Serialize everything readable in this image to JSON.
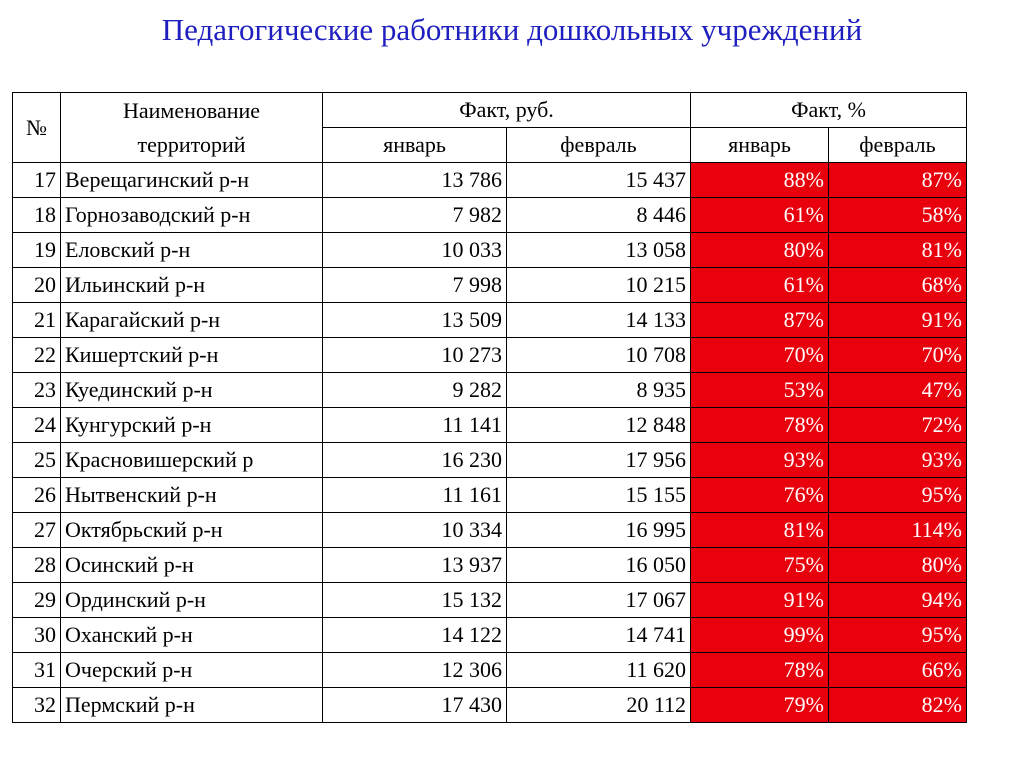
{
  "title": "Педагогические работники дошкольных учреждений",
  "headers": {
    "num": "№",
    "name_line1": "Наименование",
    "name_line2": "территорий",
    "fact_rub": "Факт, руб.",
    "fact_pct": "Факт, %",
    "jan": "январь",
    "feb": "февраль"
  },
  "colors": {
    "title": "#1f1fbf",
    "pct_cell_bg": "#e8000d",
    "pct_cell_text": "#ffffff"
  },
  "rows": [
    {
      "num": "17",
      "name": "Верещагинский р-н",
      "rub_jan": "13 786",
      "rub_feb": "15 437",
      "pct_jan": "88%",
      "pct_feb": "87%"
    },
    {
      "num": "18",
      "name": "Горнозаводский р-н",
      "rub_jan": "7 982",
      "rub_feb": "8 446",
      "pct_jan": "61%",
      "pct_feb": "58%"
    },
    {
      "num": "19",
      "name": "Еловский р-н",
      "rub_jan": "10 033",
      "rub_feb": "13 058",
      "pct_jan": "80%",
      "pct_feb": "81%"
    },
    {
      "num": "20",
      "name": "Ильинский р-н",
      "rub_jan": "7 998",
      "rub_feb": "10 215",
      "pct_jan": "61%",
      "pct_feb": "68%"
    },
    {
      "num": "21",
      "name": "Карагайский р-н",
      "rub_jan": "13 509",
      "rub_feb": "14 133",
      "pct_jan": "87%",
      "pct_feb": "91%"
    },
    {
      "num": "22",
      "name": "Кишертский р-н",
      "rub_jan": "10 273",
      "rub_feb": "10 708",
      "pct_jan": "70%",
      "pct_feb": "70%"
    },
    {
      "num": "23",
      "name": "Куединский р-н",
      "rub_jan": "9 282",
      "rub_feb": "8 935",
      "pct_jan": "53%",
      "pct_feb": "47%"
    },
    {
      "num": "24",
      "name": "Кунгурский р-н",
      "rub_jan": "11 141",
      "rub_feb": "12 848",
      "pct_jan": "78%",
      "pct_feb": "72%"
    },
    {
      "num": "25",
      "name": "Красновишерский р",
      "rub_jan": "16 230",
      "rub_feb": "17 956",
      "pct_jan": "93%",
      "pct_feb": "93%"
    },
    {
      "num": "26",
      "name": "Нытвенский р-н",
      "rub_jan": "11 161",
      "rub_feb": "15 155",
      "pct_jan": "76%",
      "pct_feb": "95%"
    },
    {
      "num": "27",
      "name": "Октябрьский р-н",
      "rub_jan": "10 334",
      "rub_feb": "16 995",
      "pct_jan": "81%",
      "pct_feb": "114%"
    },
    {
      "num": "28",
      "name": "Осинский р-н",
      "rub_jan": "13 937",
      "rub_feb": "16 050",
      "pct_jan": "75%",
      "pct_feb": "80%"
    },
    {
      "num": "29",
      "name": "Ординский р-н",
      "rub_jan": "15 132",
      "rub_feb": "17 067",
      "pct_jan": "91%",
      "pct_feb": "94%"
    },
    {
      "num": "30",
      "name": "Оханский р-н",
      "rub_jan": "14 122",
      "rub_feb": "14 741",
      "pct_jan": "99%",
      "pct_feb": "95%"
    },
    {
      "num": "31",
      "name": "Очерский р-н",
      "rub_jan": "12 306",
      "rub_feb": "11 620",
      "pct_jan": "78%",
      "pct_feb": "66%"
    },
    {
      "num": "32",
      "name": "Пермский р-н",
      "rub_jan": "17 430",
      "rub_feb": "20 112",
      "pct_jan": "79%",
      "pct_feb": "82%"
    }
  ]
}
